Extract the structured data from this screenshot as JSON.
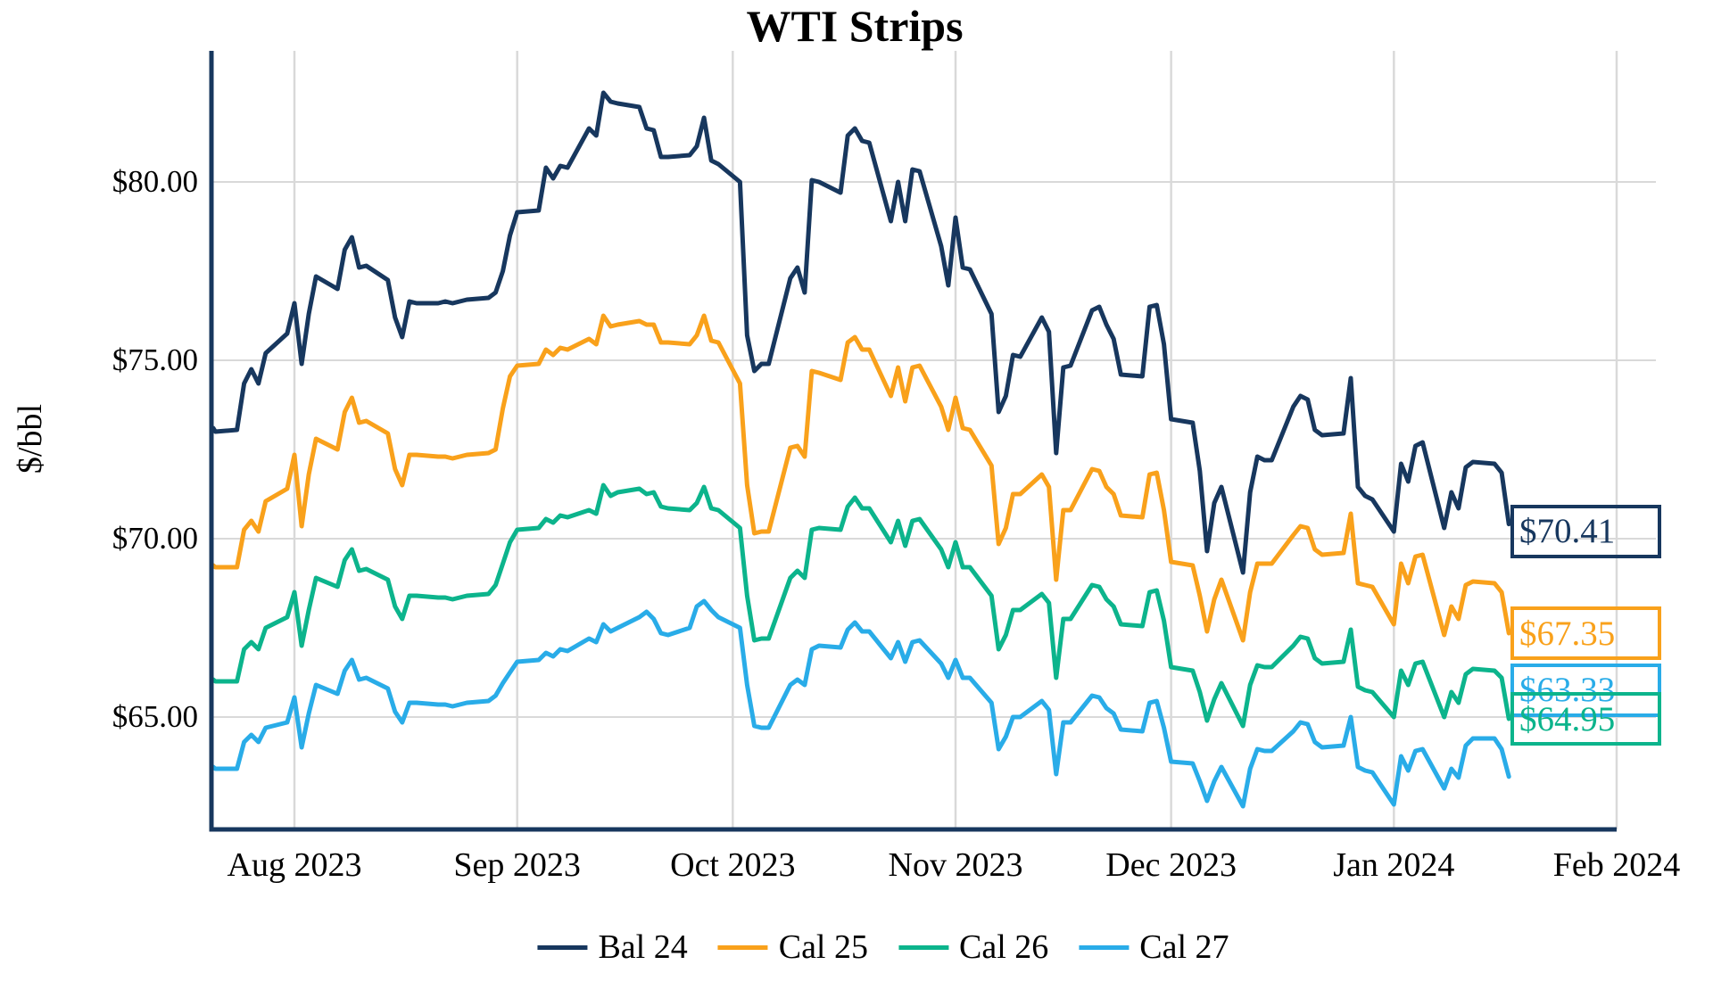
{
  "title": "WTI Strips",
  "y_axis": {
    "label": "$/bbl",
    "tick_labels": [
      "$80.00",
      "$75.00",
      "$70.00",
      "$65.00"
    ],
    "tick_values": [
      80,
      75,
      70,
      65
    ]
  },
  "x_axis": {
    "tick_labels": [
      "Aug 2023",
      "Sep 2023",
      "Oct 2023",
      "Nov 2023",
      "Dec 2023",
      "Jan 2024",
      "Feb 2024"
    ],
    "tick_months": [
      "2023-08-01",
      "2023-09-01",
      "2023-10-01",
      "2023-11-01",
      "2023-12-01",
      "2024-01-01",
      "2024-02-01"
    ]
  },
  "colors": {
    "axis": "#17375E",
    "grid": "#D9D9D9",
    "background": "#FFFFFF",
    "text": "#000000"
  },
  "legend": [
    {
      "label": "Bal 24",
      "color": "#17375E"
    },
    {
      "label": "Cal 25",
      "color": "#F9A11B"
    },
    {
      "label": "Cal 26",
      "color": "#0CB48C"
    },
    {
      "label": "Cal 27",
      "color": "#29ACE8"
    }
  ],
  "end_labels": [
    {
      "series": "Bal 24",
      "text": "$70.41",
      "color": "#17375E"
    },
    {
      "series": "Cal 25",
      "text": "$67.35",
      "color": "#F9A11B"
    },
    {
      "series": "Cal 27",
      "text": "$63.33",
      "color": "#29ACE8"
    },
    {
      "series": "Cal 26",
      "text": "$64.95",
      "color": "#0CB48C"
    }
  ],
  "chart_data": {
    "type": "line",
    "title": "WTI Strips",
    "xlabel": "",
    "ylabel": "$/bbl",
    "ylim": [
      61.9,
      83.7
    ],
    "grid": true,
    "legend_position": "bottom",
    "x": [
      "2023-07-20",
      "2023-07-21",
      "2023-07-24",
      "2023-07-25",
      "2023-07-26",
      "2023-07-27",
      "2023-07-28",
      "2023-07-31",
      "2023-08-01",
      "2023-08-02",
      "2023-08-03",
      "2023-08-04",
      "2023-08-07",
      "2023-08-08",
      "2023-08-09",
      "2023-08-10",
      "2023-08-11",
      "2023-08-14",
      "2023-08-15",
      "2023-08-16",
      "2023-08-17",
      "2023-08-18",
      "2023-08-21",
      "2023-08-22",
      "2023-08-23",
      "2023-08-24",
      "2023-08-25",
      "2023-08-28",
      "2023-08-29",
      "2023-08-30",
      "2023-08-31",
      "2023-09-01",
      "2023-09-04",
      "2023-09-05",
      "2023-09-06",
      "2023-09-07",
      "2023-09-08",
      "2023-09-11",
      "2023-09-12",
      "2023-09-13",
      "2023-09-14",
      "2023-09-15",
      "2023-09-18",
      "2023-09-19",
      "2023-09-20",
      "2023-09-21",
      "2023-09-22",
      "2023-09-25",
      "2023-09-26",
      "2023-09-27",
      "2023-09-28",
      "2023-09-29",
      "2023-10-02",
      "2023-10-03",
      "2023-10-04",
      "2023-10-05",
      "2023-10-06",
      "2023-10-09",
      "2023-10-10",
      "2023-10-11",
      "2023-10-12",
      "2023-10-13",
      "2023-10-16",
      "2023-10-17",
      "2023-10-18",
      "2023-10-19",
      "2023-10-20",
      "2023-10-23",
      "2023-10-24",
      "2023-10-25",
      "2023-10-26",
      "2023-10-27",
      "2023-10-30",
      "2023-10-31",
      "2023-11-01",
      "2023-11-02",
      "2023-11-03",
      "2023-11-06",
      "2023-11-07",
      "2023-11-08",
      "2023-11-09",
      "2023-11-10",
      "2023-11-13",
      "2023-11-14",
      "2023-11-15",
      "2023-11-16",
      "2023-11-17",
      "2023-11-20",
      "2023-11-21",
      "2023-11-22",
      "2023-11-23",
      "2023-11-24",
      "2023-11-27",
      "2023-11-28",
      "2023-11-29",
      "2023-11-30",
      "2023-12-01",
      "2023-12-04",
      "2023-12-05",
      "2023-12-06",
      "2023-12-07",
      "2023-12-08",
      "2023-12-11",
      "2023-12-12",
      "2023-12-13",
      "2023-12-14",
      "2023-12-15",
      "2023-12-18",
      "2023-12-19",
      "2023-12-20",
      "2023-12-21",
      "2023-12-22",
      "2023-12-25",
      "2023-12-26",
      "2023-12-27",
      "2023-12-28",
      "2023-12-29",
      "2024-01-01",
      "2024-01-02",
      "2024-01-03",
      "2024-01-04",
      "2024-01-05",
      "2024-01-08",
      "2024-01-09",
      "2024-01-10",
      "2024-01-11",
      "2024-01-12",
      "2024-01-15",
      "2024-01-16",
      "2024-01-17"
    ],
    "series": [
      {
        "name": "Bal 24",
        "color": "#17375E",
        "last_label": "$70.41",
        "values": [
          73.1,
          73.0,
          73.05,
          74.35,
          74.75,
          74.35,
          75.2,
          75.75,
          76.6,
          74.9,
          76.3,
          77.35,
          77.0,
          78.1,
          78.45,
          77.6,
          77.65,
          77.25,
          76.2,
          75.65,
          76.65,
          76.6,
          76.6,
          76.65,
          76.6,
          76.65,
          76.7,
          76.75,
          76.9,
          77.5,
          78.5,
          79.15,
          79.2,
          80.4,
          80.1,
          80.45,
          80.4,
          81.5,
          81.3,
          82.5,
          82.25,
          82.2,
          82.1,
          81.5,
          81.45,
          80.7,
          80.7,
          80.75,
          81.0,
          81.8,
          80.6,
          80.5,
          80.0,
          75.7,
          74.7,
          74.9,
          74.9,
          77.3,
          77.6,
          76.9,
          80.05,
          80.0,
          79.7,
          81.3,
          81.5,
          81.15,
          81.1,
          78.9,
          80.0,
          78.9,
          80.35,
          80.3,
          78.2,
          77.1,
          79.0,
          77.6,
          77.55,
          76.3,
          73.55,
          74.0,
          75.15,
          75.1,
          76.2,
          75.8,
          72.4,
          74.8,
          74.85,
          76.4,
          76.5,
          76.0,
          75.6,
          74.6,
          74.55,
          76.5,
          76.55,
          75.45,
          73.35,
          73.25,
          71.9,
          69.65,
          71.0,
          71.45,
          69.05,
          71.3,
          72.3,
          72.2,
          72.2,
          73.7,
          74.0,
          73.9,
          73.05,
          72.9,
          72.95,
          74.5,
          71.45,
          71.2,
          71.1,
          70.2,
          72.1,
          71.6,
          72.6,
          72.7,
          70.3,
          71.3,
          70.85,
          72.0,
          72.15,
          72.1,
          71.85,
          70.41
        ]
      },
      {
        "name": "Cal 25",
        "color": "#F9A11B",
        "last_label": "$67.35",
        "values": [
          69.25,
          69.2,
          69.2,
          70.25,
          70.5,
          70.2,
          71.05,
          71.4,
          72.35,
          70.35,
          71.8,
          72.8,
          72.5,
          73.55,
          73.95,
          73.25,
          73.3,
          72.95,
          71.95,
          71.5,
          72.35,
          72.35,
          72.3,
          72.3,
          72.25,
          72.3,
          72.35,
          72.4,
          72.5,
          73.65,
          74.55,
          74.85,
          74.9,
          75.3,
          75.15,
          75.35,
          75.3,
          75.6,
          75.45,
          76.25,
          75.95,
          76.0,
          76.1,
          76.0,
          76.0,
          75.5,
          75.5,
          75.45,
          75.7,
          76.25,
          75.55,
          75.5,
          74.35,
          71.5,
          70.15,
          70.2,
          70.2,
          72.55,
          72.6,
          72.3,
          74.7,
          74.65,
          74.45,
          75.5,
          75.65,
          75.3,
          75.3,
          74.0,
          74.8,
          73.85,
          74.8,
          74.85,
          73.7,
          73.05,
          73.95,
          73.1,
          73.05,
          72.05,
          69.85,
          70.3,
          71.25,
          71.25,
          71.8,
          71.45,
          68.85,
          70.8,
          70.8,
          71.95,
          71.9,
          71.45,
          71.25,
          70.65,
          70.6,
          71.8,
          71.85,
          70.8,
          69.35,
          69.25,
          68.4,
          67.4,
          68.3,
          68.85,
          67.15,
          68.5,
          69.3,
          69.3,
          69.3,
          70.1,
          70.35,
          70.3,
          69.7,
          69.55,
          69.6,
          70.7,
          68.75,
          68.7,
          68.65,
          67.6,
          69.3,
          68.75,
          69.5,
          69.55,
          67.3,
          68.1,
          67.75,
          68.7,
          68.8,
          68.75,
          68.5,
          67.35
        ]
      },
      {
        "name": "Cal 26",
        "color": "#0CB48C",
        "last_label": "$64.95",
        "values": [
          66.05,
          66.0,
          66.0,
          66.9,
          67.1,
          66.9,
          67.5,
          67.8,
          68.5,
          67.0,
          68.0,
          68.9,
          68.65,
          69.4,
          69.7,
          69.1,
          69.15,
          68.85,
          68.1,
          67.75,
          68.4,
          68.4,
          68.35,
          68.35,
          68.3,
          68.35,
          68.4,
          68.45,
          68.7,
          69.3,
          69.9,
          70.25,
          70.3,
          70.55,
          70.45,
          70.65,
          70.6,
          70.8,
          70.7,
          71.5,
          71.2,
          71.3,
          71.4,
          71.25,
          71.3,
          70.9,
          70.85,
          70.8,
          71.0,
          71.45,
          70.85,
          70.8,
          70.3,
          68.4,
          67.15,
          67.2,
          67.2,
          68.9,
          69.1,
          68.9,
          70.25,
          70.3,
          70.25,
          70.9,
          71.15,
          70.85,
          70.85,
          69.9,
          70.5,
          69.8,
          70.5,
          70.55,
          69.7,
          69.2,
          69.9,
          69.2,
          69.2,
          68.4,
          66.9,
          67.3,
          68.0,
          68.0,
          68.45,
          68.2,
          66.1,
          67.75,
          67.75,
          68.7,
          68.65,
          68.3,
          68.1,
          67.6,
          67.55,
          68.5,
          68.55,
          67.7,
          66.4,
          66.3,
          65.7,
          64.9,
          65.5,
          65.95,
          64.75,
          65.9,
          66.45,
          66.4,
          66.4,
          67.0,
          67.25,
          67.2,
          66.65,
          66.5,
          66.55,
          67.45,
          65.85,
          65.75,
          65.7,
          65.0,
          66.3,
          65.9,
          66.5,
          66.55,
          65.0,
          65.7,
          65.4,
          66.2,
          66.35,
          66.3,
          66.1,
          64.95
        ]
      },
      {
        "name": "Cal 27",
        "color": "#29ACE8",
        "last_label": "$63.33",
        "values": [
          63.6,
          63.55,
          63.55,
          64.3,
          64.5,
          64.3,
          64.7,
          64.85,
          65.55,
          64.15,
          65.1,
          65.9,
          65.65,
          66.3,
          66.6,
          66.05,
          66.1,
          65.8,
          65.15,
          64.85,
          65.4,
          65.4,
          65.35,
          65.35,
          65.3,
          65.35,
          65.4,
          65.45,
          65.6,
          65.95,
          66.25,
          66.55,
          66.6,
          66.8,
          66.7,
          66.9,
          66.85,
          67.2,
          67.1,
          67.6,
          67.4,
          67.5,
          67.8,
          67.95,
          67.75,
          67.35,
          67.3,
          67.5,
          68.1,
          68.25,
          68.0,
          67.8,
          67.5,
          65.9,
          64.75,
          64.7,
          64.7,
          65.9,
          66.05,
          65.9,
          66.9,
          67.0,
          66.95,
          67.45,
          67.65,
          67.4,
          67.4,
          66.65,
          67.1,
          66.55,
          67.1,
          67.15,
          66.5,
          66.1,
          66.6,
          66.1,
          66.1,
          65.4,
          64.1,
          64.45,
          65.0,
          65.0,
          65.45,
          65.2,
          63.4,
          64.85,
          64.85,
          65.6,
          65.55,
          65.25,
          65.1,
          64.65,
          64.6,
          65.4,
          65.45,
          64.7,
          63.75,
          63.7,
          63.2,
          62.65,
          63.2,
          63.6,
          62.5,
          63.55,
          64.1,
          64.05,
          64.05,
          64.6,
          64.85,
          64.8,
          64.3,
          64.15,
          64.2,
          65.0,
          63.6,
          63.5,
          63.45,
          62.55,
          63.9,
          63.5,
          64.05,
          64.1,
          63.0,
          63.55,
          63.3,
          64.2,
          64.4,
          64.4,
          64.1,
          63.33
        ]
      }
    ]
  }
}
